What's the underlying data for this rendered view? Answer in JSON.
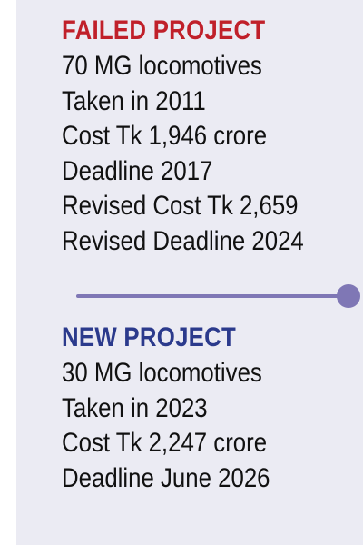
{
  "failed_project": {
    "heading": "FAILED PROJECT",
    "lines": [
      "70 MG locomotives",
      "Taken in 2011",
      "Cost Tk 1,946 crore",
      "Deadline 2017",
      "Revised Cost Tk 2,659",
      "Revised Deadline 2024"
    ]
  },
  "new_project": {
    "heading": "NEW PROJECT",
    "lines": [
      "30 MG locomotives",
      "Taken in 2023",
      "Cost Tk 2,247 crore",
      "Deadline June 2026"
    ]
  },
  "colors": {
    "failed_heading": "#c0202a",
    "new_heading": "#2b3a8c",
    "divider": "#7f77b5",
    "panel_background": "#ebebf3"
  }
}
